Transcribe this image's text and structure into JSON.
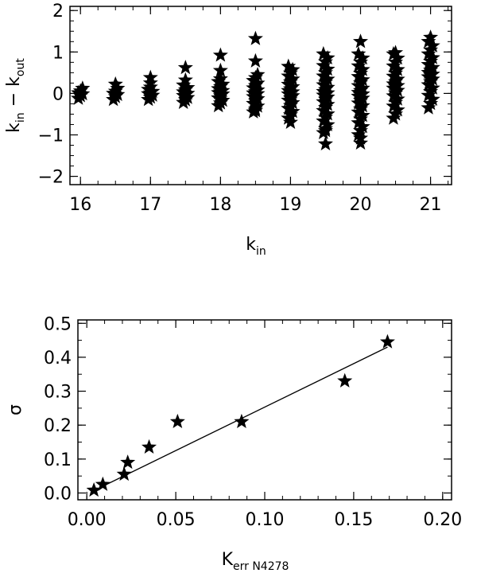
{
  "chart_data": [
    {
      "type": "scatter",
      "marker": "star",
      "xlabel": "k_in",
      "xlabel_parts": {
        "base": "k",
        "sub": "in"
      },
      "ylabel": "k_in − k_out",
      "ylabel_parts": {
        "a_base": "k",
        "a_sub": "in",
        "op": "−",
        "b_base": "k",
        "b_sub": "out"
      },
      "xlim": [
        15.85,
        21.3
      ],
      "ylim": [
        -2.2,
        2.1
      ],
      "xticks": [
        {
          "v": 16,
          "label": "16"
        },
        {
          "v": 17,
          "label": "17"
        },
        {
          "v": 18,
          "label": "18"
        },
        {
          "v": 19,
          "label": "19"
        },
        {
          "v": 20,
          "label": "20"
        },
        {
          "v": 21,
          "label": "21"
        }
      ],
      "yticks": [
        {
          "v": -2,
          "label": "−2"
        },
        {
          "v": -1,
          "label": "−1"
        },
        {
          "v": 0,
          "label": "0"
        },
        {
          "v": 1,
          "label": "1"
        },
        {
          "v": 2,
          "label": "2"
        }
      ],
      "columns": [
        {
          "x": 16.0,
          "ymin": -0.12,
          "ymax": 0.12,
          "count": 6,
          "outliers": []
        },
        {
          "x": 16.5,
          "ymin": -0.15,
          "ymax": 0.12,
          "count": 6,
          "outliers": [
            0.22
          ]
        },
        {
          "x": 17.0,
          "ymin": -0.15,
          "ymax": 0.15,
          "count": 8,
          "outliers": [
            0.38,
            0.25
          ]
        },
        {
          "x": 17.5,
          "ymin": -0.22,
          "ymax": 0.2,
          "count": 10,
          "outliers": [
            0.62,
            0.32
          ]
        },
        {
          "x": 18.0,
          "ymin": -0.3,
          "ymax": 0.35,
          "count": 14,
          "outliers": [
            0.92,
            0.55
          ]
        },
        {
          "x": 18.5,
          "ymin": -0.45,
          "ymax": 0.45,
          "count": 18,
          "outliers": [
            1.32,
            0.78,
            -0.42
          ]
        },
        {
          "x": 19.0,
          "ymin": -0.6,
          "ymax": 0.65,
          "count": 22,
          "outliers": [
            -0.7
          ]
        },
        {
          "x": 19.5,
          "ymin": -0.95,
          "ymax": 0.95,
          "count": 28,
          "outliers": [
            -1.22,
            -0.9
          ]
        },
        {
          "x": 20.0,
          "ymin": -1.0,
          "ymax": 0.95,
          "count": 28,
          "outliers": [
            1.25,
            -1.08,
            -1.2
          ]
        },
        {
          "x": 20.5,
          "ymin": -0.6,
          "ymax": 0.95,
          "count": 22,
          "outliers": [
            0.98
          ]
        },
        {
          "x": 21.0,
          "ymin": -0.35,
          "ymax": 1.25,
          "count": 22,
          "outliers": [
            1.35
          ]
        }
      ]
    },
    {
      "type": "scatter",
      "marker": "star",
      "xlabel": "K_err N4278",
      "xlabel_parts": {
        "base": "K",
        "sub": "err N4278"
      },
      "ylabel": "σ",
      "xlim": [
        -0.005,
        0.205
      ],
      "ylim": [
        -0.02,
        0.51
      ],
      "xticks": [
        {
          "v": 0.0,
          "label": "0.00"
        },
        {
          "v": 0.05,
          "label": "0.05"
        },
        {
          "v": 0.1,
          "label": "0.10"
        },
        {
          "v": 0.15,
          "label": "0.15"
        },
        {
          "v": 0.2,
          "label": "0.20"
        }
      ],
      "yticks": [
        {
          "v": 0.0,
          "label": "0.0"
        },
        {
          "v": 0.1,
          "label": "0.1"
        },
        {
          "v": 0.2,
          "label": "0.2"
        },
        {
          "v": 0.3,
          "label": "0.3"
        },
        {
          "v": 0.4,
          "label": "0.4"
        },
        {
          "v": 0.5,
          "label": "0.5"
        }
      ],
      "points": [
        {
          "x": 0.004,
          "y": 0.008
        },
        {
          "x": 0.009,
          "y": 0.025
        },
        {
          "x": 0.021,
          "y": 0.055
        },
        {
          "x": 0.023,
          "y": 0.09
        },
        {
          "x": 0.035,
          "y": 0.135
        },
        {
          "x": 0.051,
          "y": 0.21
        },
        {
          "x": 0.087,
          "y": 0.21
        },
        {
          "x": 0.145,
          "y": 0.33
        },
        {
          "x": 0.169,
          "y": 0.445
        }
      ],
      "fit_line": {
        "x": [
          0.004,
          0.169
        ],
        "y": [
          0.007,
          0.43
        ]
      }
    }
  ]
}
